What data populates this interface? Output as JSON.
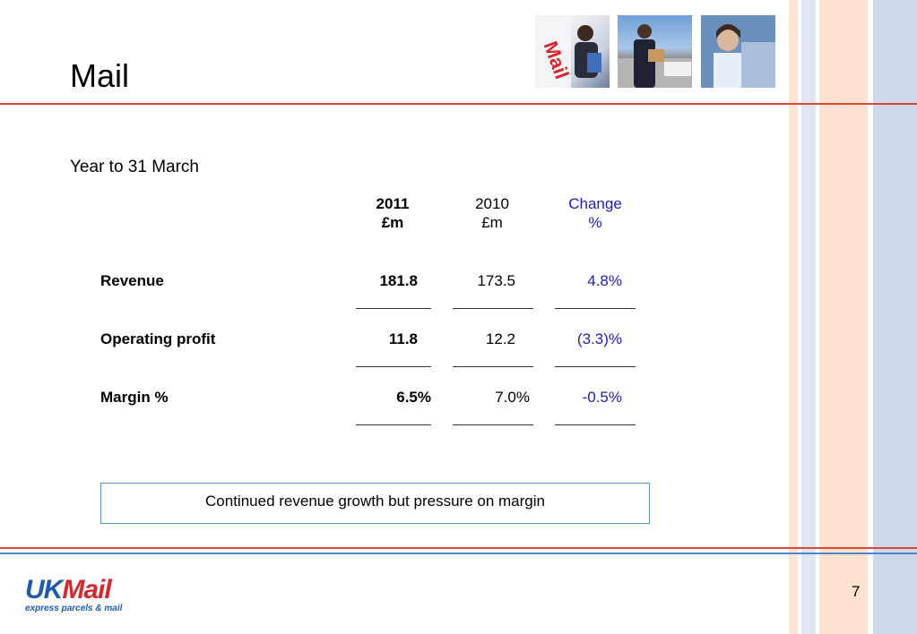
{
  "slide": {
    "title": "Mail",
    "subtitle": "Year to 31 March",
    "page_number": "7"
  },
  "photos": [
    {
      "name": "mail-van-woman-photo"
    },
    {
      "name": "courier-with-parcel-photo"
    },
    {
      "name": "woman-at-desk-photo"
    }
  ],
  "table": {
    "headers": [
      {
        "line1": "2011",
        "line2": "£m"
      },
      {
        "line1": "2010",
        "line2": "£m"
      },
      {
        "line1": "Change",
        "line2": "%"
      }
    ],
    "rows": [
      {
        "label": "Revenue",
        "y2011": "181.8",
        "y2010": "173.5",
        "change": "4.8%"
      },
      {
        "label": "Operating profit",
        "y2011": "11.8",
        "y2010": "12.2",
        "change": "(3.3)%"
      },
      {
        "label": "Margin %",
        "y2011": "6.5%",
        "y2010": "7.0%",
        "change": "-0.5%"
      }
    ]
  },
  "note": "Continued revenue growth but pressure on margin",
  "logo": {
    "uk": "UK",
    "mail": "Mail",
    "tagline": "express parcels & mail"
  },
  "colors": {
    "accent_red": "#d8473a",
    "accent_blue": "#4f86cf",
    "change_text": "#1b1bd0",
    "logo_blue": "#1d59b4",
    "logo_red": "#d8262c"
  }
}
